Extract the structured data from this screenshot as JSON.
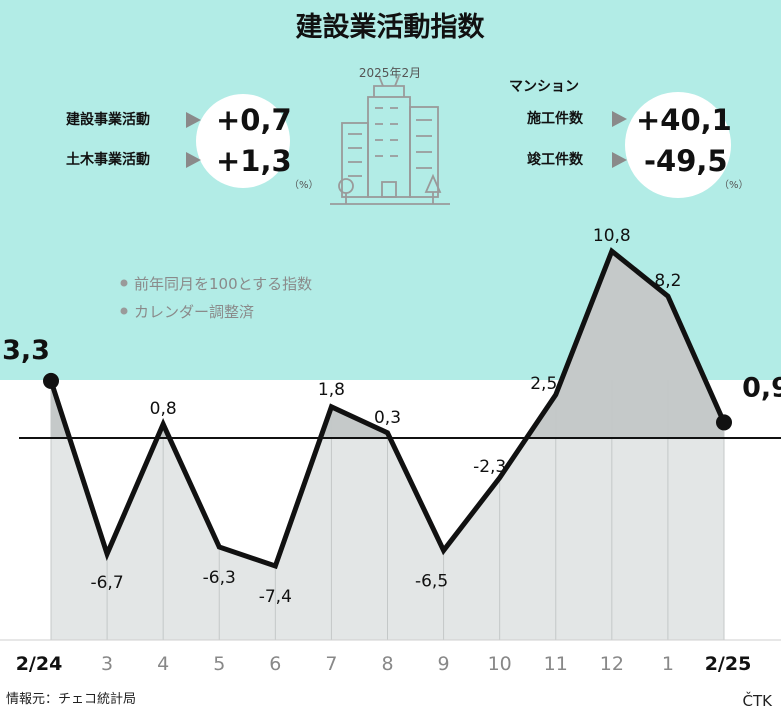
{
  "title": "建設業活動指数",
  "month_label": "2025年2月",
  "summary_left": {
    "items": [
      {
        "label": "建設事業活動",
        "value": "+0,7"
      },
      {
        "label": "土木事業活動",
        "value": "+1,3"
      }
    ],
    "unit": "（%）"
  },
  "summary_right": {
    "heading": "マンション",
    "items": [
      {
        "label": "施工件数",
        "value": "+40,1"
      },
      {
        "label": "竣工件数",
        "value": "-49,5"
      }
    ],
    "unit": "（%）"
  },
  "notes": [
    "前年同月を100とする指数",
    "カレンダー調整済"
  ],
  "source": "情報元：チェコ統計局",
  "agency": "ČTK",
  "colors": {
    "background": "#b2ece6",
    "fill": "#e3e6e6",
    "fill_positive": "#c5c9c9",
    "line": "#111111"
  },
  "icon": "building-icon",
  "chart_data": {
    "type": "line",
    "title": "建設業活動指数",
    "x": [
      "2/24",
      "3",
      "4",
      "5",
      "6",
      "7",
      "8",
      "9",
      "10",
      "11",
      "12",
      "1",
      "2/25"
    ],
    "labels": [
      "3,3",
      "-6,7",
      "0,8",
      "-6,3",
      "-7,4",
      "1,8",
      "0,3",
      "-6,5",
      "-2,3",
      "2,5",
      "10,8",
      "8,2",
      "0,9"
    ],
    "series": [
      {
        "values": [
          3.3,
          -6.7,
          0.8,
          -6.3,
          -7.4,
          1.8,
          0.3,
          -6.5,
          -2.3,
          2.5,
          10.8,
          8.2,
          0.9
        ]
      }
    ],
    "baseline": 0,
    "grid": "vertical",
    "legend": "none"
  }
}
